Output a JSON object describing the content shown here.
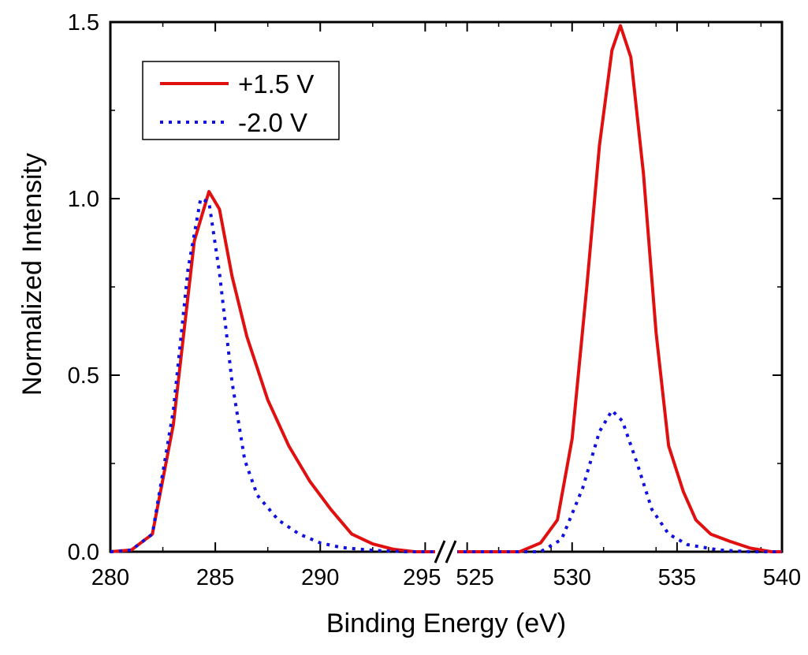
{
  "chart_data": {
    "type": "line",
    "xlabel": "Binding Energy (eV)",
    "ylabel": "Normalized Intensity",
    "broken_x_axis": true,
    "segments": [
      {
        "xlim": [
          280,
          296
        ],
        "xticks": [
          280,
          285,
          290,
          295
        ]
      },
      {
        "xlim": [
          524,
          540
        ],
        "xticks": [
          525,
          530,
          535,
          540
        ]
      }
    ],
    "ylim": [
      0,
      1.5
    ],
    "yticks": [
      0.0,
      0.5,
      1.0,
      1.5
    ],
    "ytick_labels": [
      "0.0",
      "0.5",
      "1.0",
      "1.5"
    ],
    "xtick_labels": [
      "280",
      "285",
      "290",
      "295",
      "525",
      "530",
      "535",
      "540"
    ],
    "grid": false,
    "legend_position": "top-left",
    "series": [
      {
        "name": "+1.5 V",
        "color": "#e01010",
        "style": "solid",
        "points": [
          [
            280,
            0.0
          ],
          [
            281,
            0.005
          ],
          [
            282,
            0.05
          ],
          [
            283,
            0.36
          ],
          [
            284,
            0.88
          ],
          [
            284.7,
            1.02
          ],
          [
            285.2,
            0.97
          ],
          [
            285.8,
            0.78
          ],
          [
            286.5,
            0.61
          ],
          [
            287.5,
            0.43
          ],
          [
            288.5,
            0.3
          ],
          [
            289.5,
            0.2
          ],
          [
            290.5,
            0.12
          ],
          [
            291.5,
            0.05
          ],
          [
            292.5,
            0.022
          ],
          [
            293.5,
            0.007
          ],
          [
            294.5,
            0.0
          ],
          [
            296,
            0.0
          ],
          [
            524,
            0.0
          ],
          [
            527.5,
            0.0
          ],
          [
            528.5,
            0.025
          ],
          [
            529.3,
            0.09
          ],
          [
            530,
            0.32
          ],
          [
            530.7,
            0.75
          ],
          [
            531.3,
            1.15
          ],
          [
            531.9,
            1.42
          ],
          [
            532.3,
            1.49
          ],
          [
            532.8,
            1.4
          ],
          [
            533.4,
            1.07
          ],
          [
            534,
            0.62
          ],
          [
            534.6,
            0.3
          ],
          [
            535.3,
            0.17
          ],
          [
            535.9,
            0.09
          ],
          [
            536.6,
            0.05
          ],
          [
            537.5,
            0.03
          ],
          [
            538.5,
            0.01
          ],
          [
            539.5,
            0.0
          ],
          [
            540,
            0.0
          ]
        ]
      },
      {
        "name": "-2.0 V",
        "color": "#1010e0",
        "style": "dotted",
        "points": [
          [
            280,
            0.0
          ],
          [
            281,
            0.005
          ],
          [
            282,
            0.05
          ],
          [
            283,
            0.4
          ],
          [
            283.7,
            0.8
          ],
          [
            284.3,
            1.0
          ],
          [
            284.7,
            0.99
          ],
          [
            285.2,
            0.79
          ],
          [
            285.8,
            0.48
          ],
          [
            286.4,
            0.26
          ],
          [
            287,
            0.16
          ],
          [
            288,
            0.09
          ],
          [
            289,
            0.05
          ],
          [
            290,
            0.025
          ],
          [
            291,
            0.012
          ],
          [
            292.5,
            0.004
          ],
          [
            294,
            0.0
          ],
          [
            296,
            0.0
          ],
          [
            524,
            0.0
          ],
          [
            528.5,
            0.0
          ],
          [
            529.5,
            0.035
          ],
          [
            530.5,
            0.18
          ],
          [
            531.3,
            0.34
          ],
          [
            531.9,
            0.4
          ],
          [
            532.4,
            0.37
          ],
          [
            533.1,
            0.25
          ],
          [
            533.8,
            0.12
          ],
          [
            534.6,
            0.05
          ],
          [
            535.5,
            0.02
          ],
          [
            537,
            0.005
          ],
          [
            538.5,
            0.0
          ],
          [
            540,
            0.0
          ]
        ]
      }
    ]
  }
}
